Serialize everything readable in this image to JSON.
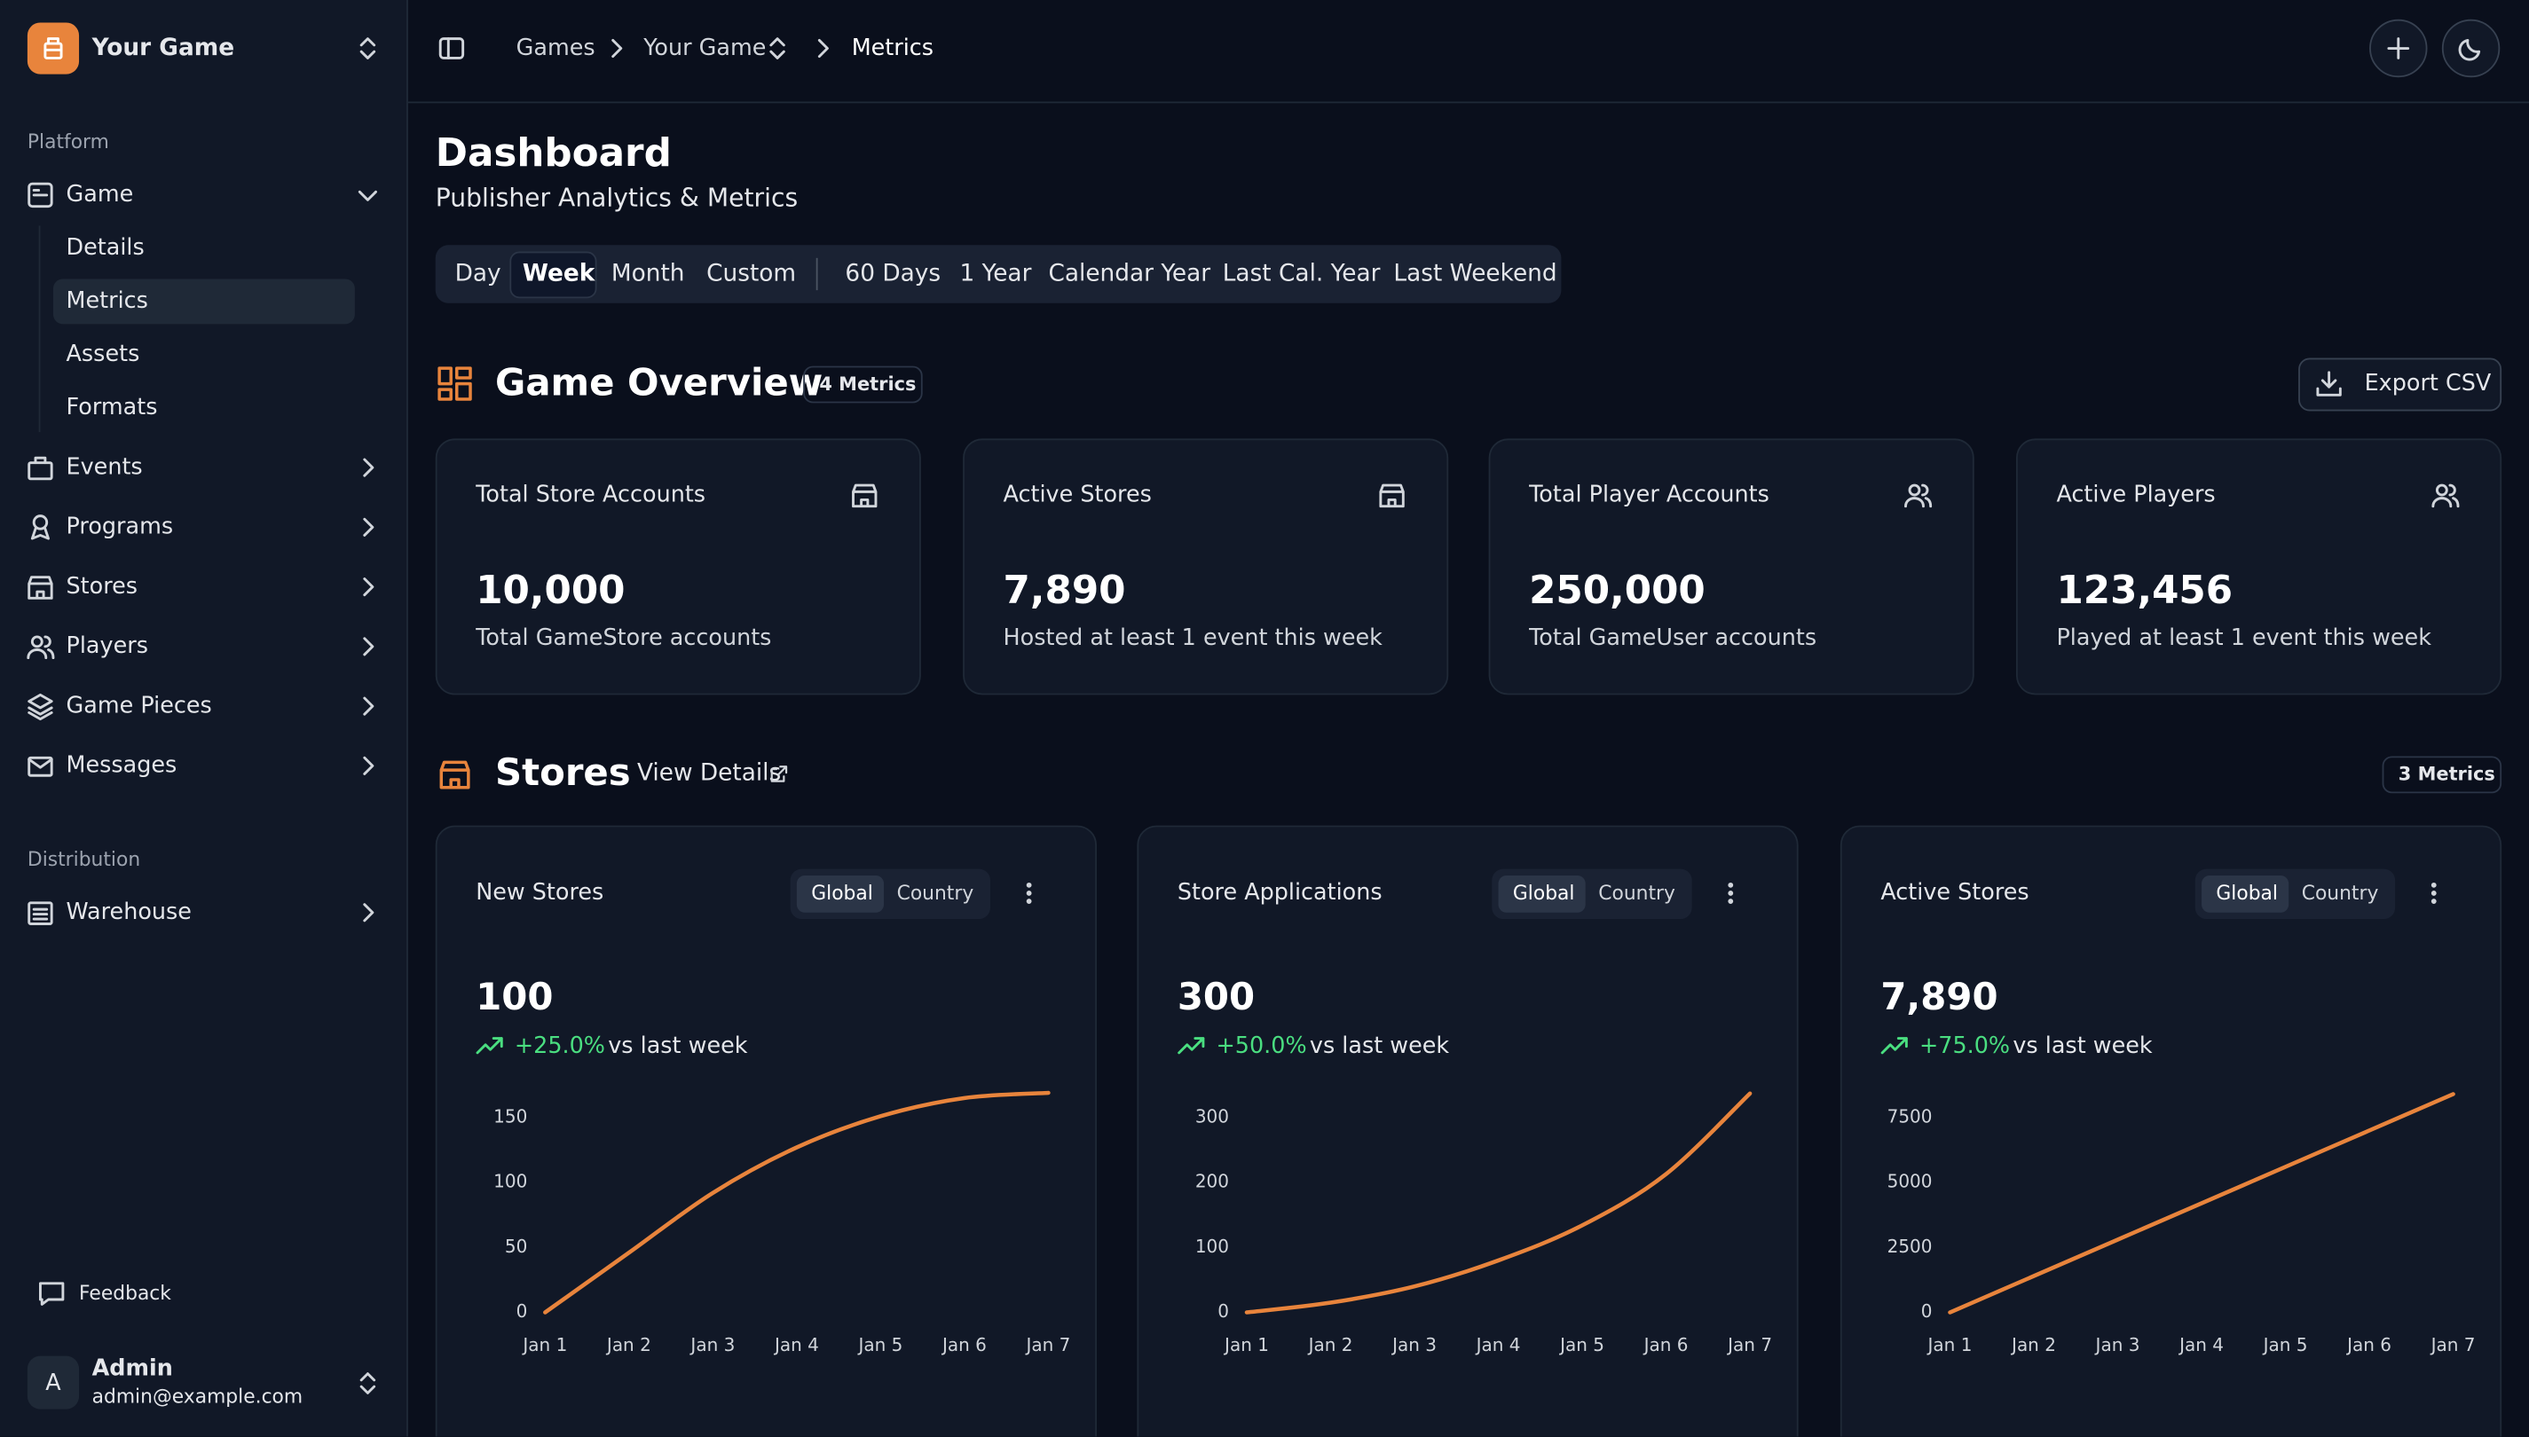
{
  "sidebar": {
    "app_name": "Your Game",
    "sections": [
      {
        "title": "Platform",
        "items": [
          "Game",
          "Events",
          "Programs",
          "Stores",
          "Players",
          "Game Pieces",
          "Messages"
        ]
      },
      {
        "title": "Distribution",
        "items": [
          "Warehouse"
        ]
      }
    ],
    "game_submenu": [
      "Details",
      "Metrics",
      "Assets",
      "Formats"
    ],
    "feedback": "Feedback",
    "user": {
      "initial": "A",
      "name": "Admin",
      "email": "admin@example.com"
    }
  },
  "breadcrumb": [
    "Games",
    "Your Game",
    "Metrics"
  ],
  "dashboard": {
    "title": "Dashboard",
    "subtitle": "Publisher Analytics & Metrics",
    "ranges": [
      "Day",
      "Week",
      "Month",
      "Custom"
    ],
    "presets": [
      "60 Days",
      "1 Year",
      "Calendar Year",
      "Last Cal. Year",
      "Last Weekend"
    ]
  },
  "overview": {
    "title": "Game Overview",
    "badge": "4 Metrics",
    "export": "Export CSV",
    "cards": [
      {
        "label": "Total Store Accounts",
        "value": "10,000",
        "note": "Total GameStore accounts"
      },
      {
        "label": "Active Stores",
        "value": "7,890",
        "note": "Hosted at least 1 event this week"
      },
      {
        "label": "Total Player Accounts",
        "value": "250,000",
        "note": "Total GameUser accounts"
      },
      {
        "label": "Active Players",
        "value": "123,456",
        "note": "Played at least 1 event this week"
      }
    ]
  },
  "stores": {
    "title": "Stores",
    "link": "View Details",
    "badge": "3 Metrics",
    "toggle": [
      "Global",
      "Country"
    ],
    "comparison": "vs last week"
  },
  "chart_data": [
    {
      "type": "line",
      "title": "New Stores",
      "value": "100",
      "change": "+25.0%",
      "color": "#e8843c",
      "categories": [
        "Jan 1",
        "Jan 2",
        "Jan 3",
        "Jan 4",
        "Jan 5",
        "Jan 6",
        "Jan 7"
      ],
      "values": [
        0,
        46,
        92,
        127,
        151,
        165,
        169
      ],
      "ylim": [
        0,
        170
      ],
      "yticks": [
        0,
        50,
        100,
        150
      ]
    },
    {
      "type": "line",
      "title": "Store Applications",
      "value": "300",
      "change": "+50.0%",
      "color": "#e8843c",
      "categories": [
        "Jan 1",
        "Jan 2",
        "Jan 3",
        "Jan 4",
        "Jan 5",
        "Jan 6",
        "Jan 7"
      ],
      "values": [
        0,
        15,
        40,
        80,
        134,
        213,
        337
      ],
      "ylim": [
        0,
        340
      ],
      "yticks": [
        0,
        100,
        200,
        300
      ]
    },
    {
      "type": "line",
      "title": "Active Stores",
      "value": "7,890",
      "change": "+75.0%",
      "color": "#e8843c",
      "categories": [
        "Jan 1",
        "Jan 2",
        "Jan 3",
        "Jan 4",
        "Jan 5",
        "Jan 6",
        "Jan 7"
      ],
      "values": [
        0,
        1400,
        2800,
        4200,
        5600,
        7000,
        8400
      ],
      "ylim": [
        0,
        8500
      ],
      "yticks": [
        0,
        2500,
        5000,
        7500
      ]
    }
  ]
}
